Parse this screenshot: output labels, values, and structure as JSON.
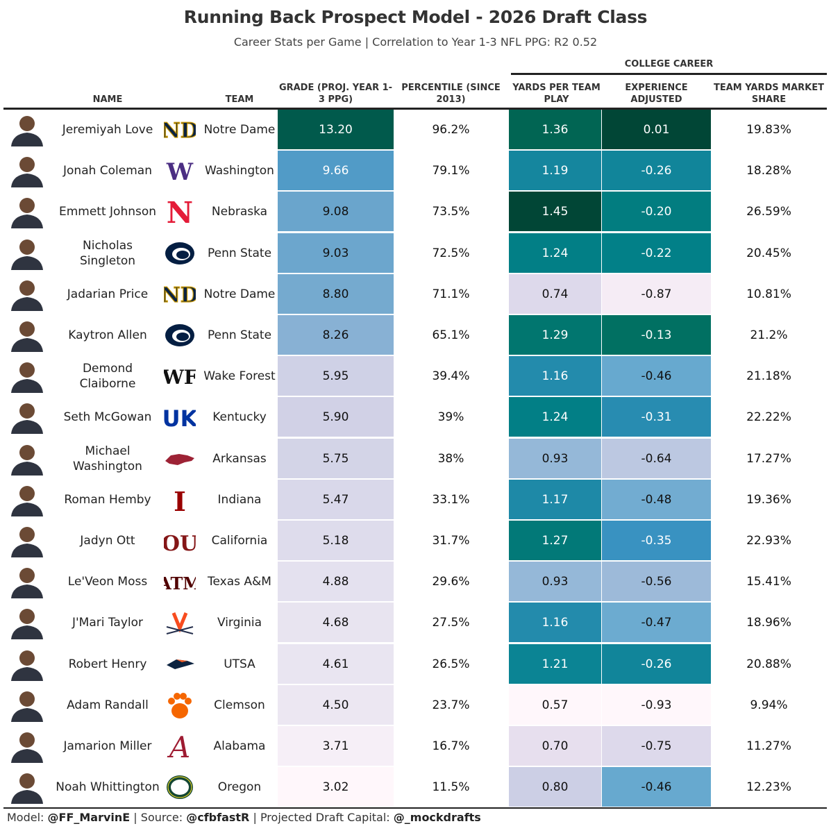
{
  "title": "Running Back Prospect Model - 2026 Draft Class",
  "subtitle": "Career Stats per Game | Correlation to Year 1-3 NFL PPG: R2 0.52",
  "spanner": "COLLEGE CAREER",
  "columns": {
    "name": "NAME",
    "team": "TEAM",
    "grade": "GRADE (PROJ. YEAR 1- 3 PPG)",
    "percentile": "PERCENTILE (SINCE 2013)",
    "ypp": "YARDS PER TEAM PLAY",
    "exp": "EXPERIENCE ADJUSTED",
    "share": "TEAM YARDS MARKET SHARE"
  },
  "footer": {
    "model_label": "Model: ",
    "model_handle": "@FF_MarvinE",
    "source_label": " | Source: ",
    "source_handle": "@cfbfastR",
    "capital_label": " | Projected Draft Capital: ",
    "capital_handle": "@_mockdrafts"
  },
  "colors": {
    "grade_scale": [
      "#fff7fb",
      "#ece7f2",
      "#d0d1e6",
      "#a6bddb",
      "#74a9cf",
      "#3690c0",
      "#0570b0",
      "#015a4c"
    ],
    "college_scale": [
      "#fff7fb",
      "#ece2f0",
      "#d0d1e6",
      "#a6bddb",
      "#67a9cf",
      "#3690c0",
      "#02818a",
      "#016c59",
      "#014636"
    ]
  },
  "chart_data": {
    "type": "table",
    "title": "Running Back Prospect Model - 2026 Draft Class",
    "subtitle": "Career Stats per Game | Correlation to Year 1-3 NFL PPG: R2 0.52",
    "rows": [
      {
        "name": "Jeremiyah Love",
        "team": "Notre Dame",
        "logo": "notre-dame-logo",
        "grade": "13.20",
        "percentile": "96.2%",
        "ypp": "1.36",
        "exp": "0.01",
        "share": "19.83%",
        "grade_v": 13.2,
        "ypp_v": 1.36,
        "exp_v": 0.01
      },
      {
        "name": "Jonah Coleman",
        "team": "Washington",
        "logo": "washington-logo",
        "grade": "9.66",
        "percentile": "79.1%",
        "ypp": "1.19",
        "exp": "-0.26",
        "share": "18.28%",
        "grade_v": 9.66,
        "ypp_v": 1.19,
        "exp_v": -0.26
      },
      {
        "name": "Emmett Johnson",
        "team": "Nebraska",
        "logo": "nebraska-logo",
        "grade": "9.08",
        "percentile": "73.5%",
        "ypp": "1.45",
        "exp": "-0.20",
        "share": "26.59%",
        "grade_v": 9.08,
        "ypp_v": 1.45,
        "exp_v": -0.2
      },
      {
        "name": "Nicholas Singleton",
        "team": "Penn State",
        "logo": "penn-state-logo",
        "grade": "9.03",
        "percentile": "72.5%",
        "ypp": "1.24",
        "exp": "-0.22",
        "share": "20.45%",
        "grade_v": 9.03,
        "ypp_v": 1.24,
        "exp_v": -0.22
      },
      {
        "name": "Jadarian Price",
        "team": "Notre Dame",
        "logo": "notre-dame-logo",
        "grade": "8.80",
        "percentile": "71.1%",
        "ypp": "0.74",
        "exp": "-0.87",
        "share": "10.81%",
        "grade_v": 8.8,
        "ypp_v": 0.74,
        "exp_v": -0.87
      },
      {
        "name": "Kaytron Allen",
        "team": "Penn State",
        "logo": "penn-state-logo",
        "grade": "8.26",
        "percentile": "65.1%",
        "ypp": "1.29",
        "exp": "-0.13",
        "share": "21.2%",
        "grade_v": 8.26,
        "ypp_v": 1.29,
        "exp_v": -0.13
      },
      {
        "name": "Demond Claiborne",
        "team": "Wake Forest",
        "logo": "wake-forest-logo",
        "grade": "5.95",
        "percentile": "39.4%",
        "ypp": "1.16",
        "exp": "-0.46",
        "share": "21.18%",
        "grade_v": 5.95,
        "ypp_v": 1.16,
        "exp_v": -0.46
      },
      {
        "name": "Seth McGowan",
        "team": "Kentucky",
        "logo": "kentucky-logo",
        "grade": "5.90",
        "percentile": "39%",
        "ypp": "1.24",
        "exp": "-0.31",
        "share": "22.22%",
        "grade_v": 5.9,
        "ypp_v": 1.24,
        "exp_v": -0.31
      },
      {
        "name": "Michael Washington",
        "team": "Arkansas",
        "logo": "arkansas-logo",
        "grade": "5.75",
        "percentile": "38%",
        "ypp": "0.93",
        "exp": "-0.64",
        "share": "17.27%",
        "grade_v": 5.75,
        "ypp_v": 0.93,
        "exp_v": -0.64
      },
      {
        "name": "Roman Hemby",
        "team": "Indiana",
        "logo": "indiana-logo",
        "grade": "5.47",
        "percentile": "33.1%",
        "ypp": "1.17",
        "exp": "-0.48",
        "share": "19.36%",
        "grade_v": 5.47,
        "ypp_v": 1.17,
        "exp_v": -0.48
      },
      {
        "name": "Jadyn Ott",
        "team": "California",
        "logo": "oklahoma-logo",
        "grade": "5.18",
        "percentile": "31.7%",
        "ypp": "1.27",
        "exp": "-0.35",
        "share": "22.93%",
        "grade_v": 5.18,
        "ypp_v": 1.27,
        "exp_v": -0.35
      },
      {
        "name": "Le'Veon Moss",
        "team": "Texas A&M",
        "logo": "texas-am-logo",
        "grade": "4.88",
        "percentile": "29.6%",
        "ypp": "0.93",
        "exp": "-0.56",
        "share": "15.41%",
        "grade_v": 4.88,
        "ypp_v": 0.93,
        "exp_v": -0.56
      },
      {
        "name": "J'Mari Taylor",
        "team": "Virginia",
        "logo": "virginia-logo",
        "grade": "4.68",
        "percentile": "27.5%",
        "ypp": "1.16",
        "exp": "-0.47",
        "share": "18.96%",
        "grade_v": 4.68,
        "ypp_v": 1.16,
        "exp_v": -0.47
      },
      {
        "name": "Robert Henry",
        "team": "UTSA",
        "logo": "utsa-logo",
        "grade": "4.61",
        "percentile": "26.5%",
        "ypp": "1.21",
        "exp": "-0.26",
        "share": "20.88%",
        "grade_v": 4.61,
        "ypp_v": 1.21,
        "exp_v": -0.26
      },
      {
        "name": "Adam Randall",
        "team": "Clemson",
        "logo": "clemson-logo",
        "grade": "4.50",
        "percentile": "23.7%",
        "ypp": "0.57",
        "exp": "-0.93",
        "share": "9.94%",
        "grade_v": 4.5,
        "ypp_v": 0.57,
        "exp_v": -0.93
      },
      {
        "name": "Jamarion Miller",
        "team": "Alabama",
        "logo": "alabama-logo",
        "grade": "3.71",
        "percentile": "16.7%",
        "ypp": "0.70",
        "exp": "-0.75",
        "share": "11.27%",
        "grade_v": 3.71,
        "ypp_v": 0.7,
        "exp_v": -0.75
      },
      {
        "name": "Noah Whittington",
        "team": "Oregon",
        "logo": "oregon-logo",
        "grade": "3.02",
        "percentile": "11.5%",
        "ypp": "0.80",
        "exp": "-0.46",
        "share": "12.23%",
        "grade_v": 3.02,
        "ypp_v": 0.8,
        "exp_v": -0.46
      }
    ]
  }
}
